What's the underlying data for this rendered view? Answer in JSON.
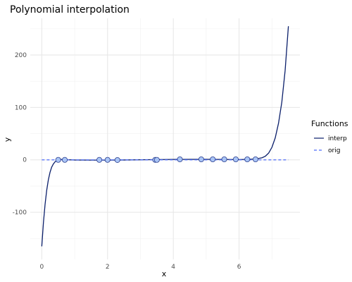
{
  "chart_data": {
    "type": "line",
    "title": "Polynomial interpolation",
    "xlabel": "x",
    "ylabel": "y",
    "xlim": [
      -0.35,
      7.85
    ],
    "ylim": [
      -190,
      270
    ],
    "grid": true,
    "x_ticks": [
      0,
      2,
      4,
      6
    ],
    "y_ticks": [
      -100,
      0,
      100,
      200
    ],
    "legend": {
      "title": "Functions",
      "position": "right",
      "entries": [
        {
          "label": "interp",
          "color": "#0b1f6b",
          "style": "solid"
        },
        {
          "label": "orig",
          "color": "#4d6cfa",
          "style": "dashed"
        }
      ]
    },
    "series": [
      {
        "name": "interp",
        "color": "#0b1f6b",
        "style": "solid",
        "x": [
          0.0,
          0.05,
          0.1,
          0.15,
          0.2,
          0.25,
          0.3,
          0.35,
          0.4,
          0.45,
          0.5,
          0.6,
          0.7,
          0.8,
          1.0,
          1.5,
          2.0,
          2.5,
          3.0,
          3.5,
          4.0,
          4.5,
          5.0,
          5.5,
          6.0,
          6.5,
          6.7,
          6.8,
          6.9,
          7.0,
          7.1,
          7.2,
          7.3,
          7.4,
          7.5
        ],
        "y": [
          -165,
          -120,
          -85,
          -58,
          -38,
          -24,
          -14,
          -8,
          -4,
          -1.5,
          0,
          0.8,
          0.5,
          0.2,
          -0.3,
          -0.5,
          -0.5,
          -0.3,
          0.2,
          0.5,
          0.8,
          1.0,
          1.0,
          0.8,
          0.5,
          1.5,
          4,
          7,
          13,
          24,
          42,
          70,
          110,
          170,
          255
        ]
      },
      {
        "name": "orig",
        "color": "#4d6cfa",
        "style": "dashed",
        "x": [
          0.0,
          7.5
        ],
        "y": [
          0,
          0
        ]
      }
    ],
    "points": {
      "fill": "#a9c4f5",
      "stroke": "#2b3f8f",
      "x": [
        0.5,
        0.7,
        1.75,
        2.0,
        2.3,
        3.45,
        3.5,
        4.2,
        4.85,
        5.2,
        5.55,
        5.9,
        6.25,
        6.5
      ],
      "y": [
        0,
        0,
        0,
        0,
        -0.3,
        0,
        0,
        1,
        1,
        1,
        1,
        1,
        1,
        1
      ]
    }
  }
}
